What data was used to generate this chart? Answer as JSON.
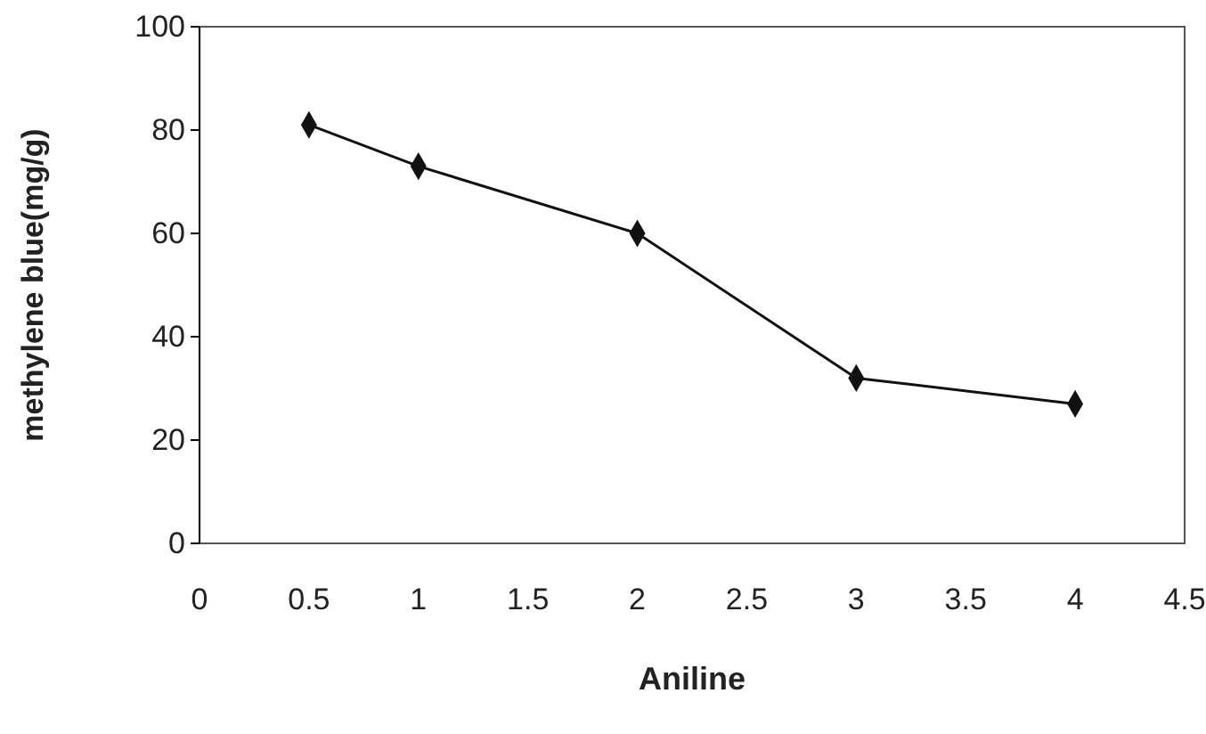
{
  "chart_data": {
    "type": "line",
    "xlabel": "Aniline",
    "ylabel": "methylene blue(mg/g)",
    "x": [
      0.5,
      1,
      2,
      3,
      4
    ],
    "series": [
      {
        "color": "#111111",
        "values": [
          81,
          73,
          60,
          32,
          27
        ]
      }
    ],
    "xlim": [
      0,
      4.5
    ],
    "xticks": [
      0,
      0.5,
      1,
      1.5,
      2,
      2.5,
      3,
      3.5,
      4,
      4.5
    ],
    "ylim": [
      0,
      100
    ],
    "yticks": [
      0,
      20,
      40,
      60,
      80,
      100
    ],
    "marker": "diamond",
    "line_style": "solid",
    "grid": false
  }
}
